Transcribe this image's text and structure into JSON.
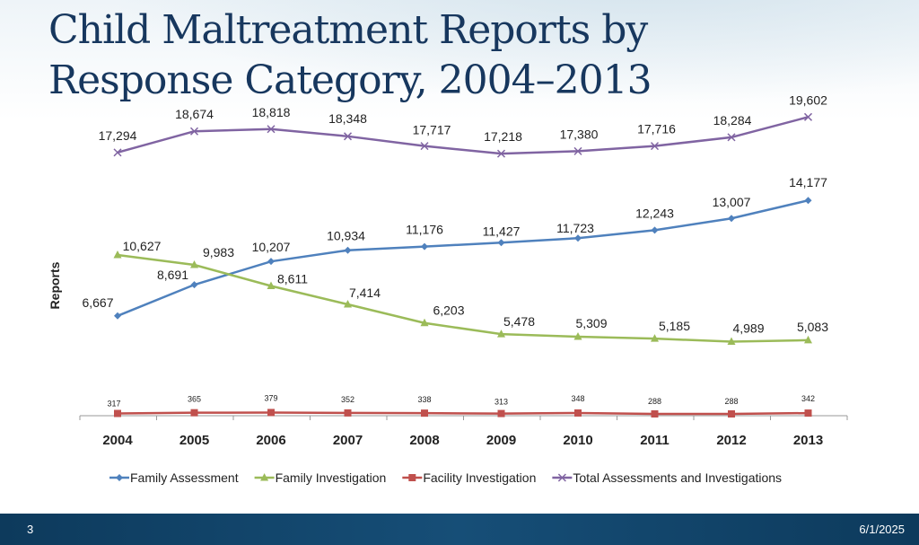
{
  "slide": {
    "title": "Child Maltreatment Reports by Response Category, 2004–2013",
    "number": "3",
    "date": "6/1/2025"
  },
  "chart_data": {
    "type": "line",
    "title": "",
    "xlabel": "",
    "ylabel": "Reports",
    "categories": [
      "2004",
      "2005",
      "2006",
      "2007",
      "2008",
      "2009",
      "2010",
      "2011",
      "2012",
      "2013"
    ],
    "ylim": [
      0,
      20000
    ],
    "grid": false,
    "legend_position": "bottom",
    "series": [
      {
        "name": "Family Assessment",
        "color": "#4f81bd",
        "marker": "diamond",
        "values": [
          6667,
          8691,
          10207,
          10934,
          11176,
          11427,
          11723,
          12243,
          13007,
          14177
        ],
        "labels": [
          "6,667",
          "8,691",
          "10,207",
          "10,934",
          "11,176",
          "11,427",
          "11,723",
          "12,243",
          "13,007",
          "14,177"
        ]
      },
      {
        "name": "Family Investigation",
        "color": "#9bbb59",
        "marker": "triangle",
        "values": [
          10627,
          9983,
          8611,
          7414,
          6203,
          5478,
          5309,
          5185,
          4989,
          5083
        ],
        "labels": [
          "10,627",
          "9,983",
          "8,611",
          "7,414",
          "6,203",
          "5,478",
          "5,309",
          "5,185",
          "4,989",
          "5,083"
        ]
      },
      {
        "name": "Facility Investigation",
        "color": "#c0504d",
        "marker": "square",
        "values": [
          317,
          365,
          379,
          352,
          338,
          313,
          348,
          288,
          288,
          342
        ],
        "labels": [
          "317",
          "365",
          "379",
          "352",
          "338",
          "313",
          "348",
          "288",
          "288",
          "342"
        ]
      },
      {
        "name": "Total Assessments and Investigations",
        "color": "#8064a2",
        "marker": "x",
        "values": [
          17294,
          18674,
          18818,
          18348,
          17717,
          17218,
          17380,
          17716,
          18284,
          19602
        ],
        "labels": [
          "17,294",
          "18,674",
          "18,818",
          "18,348",
          "17,717",
          "17,218",
          "17,380",
          "17,716",
          "18,284",
          "19,602"
        ]
      }
    ]
  }
}
